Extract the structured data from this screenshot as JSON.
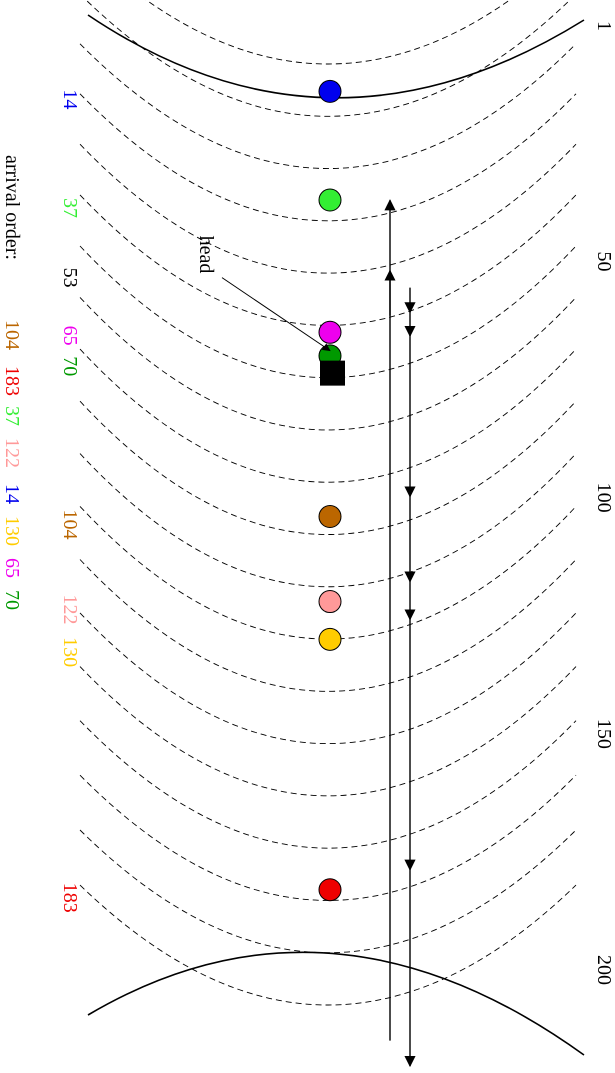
{
  "scale_labels": [
    {
      "text": "1",
      "cyl": 1
    },
    {
      "text": "50",
      "cyl": 50
    },
    {
      "text": "100",
      "cyl": 100
    },
    {
      "text": "150",
      "cyl": 150
    },
    {
      "text": "200",
      "cyl": 200
    }
  ],
  "requests": [
    {
      "cyl": 14,
      "label": "14",
      "color": "#0000ee",
      "label_cyl": 14
    },
    {
      "cyl": 37,
      "label": "37",
      "color": "#33ee33",
      "label_cyl": 37
    },
    {
      "cyl": 65,
      "label": "65",
      "color": "#ee00ee",
      "label_cyl": 64
    },
    {
      "cyl": 70,
      "label": "70",
      "color": "#009900",
      "label_cyl": 70.5
    },
    {
      "cyl": 104,
      "label": "104",
      "color": "#bb6600",
      "label_cyl": 104
    },
    {
      "cyl": 122,
      "label": "122",
      "color": "#ff9999",
      "label_cyl": 122
    },
    {
      "cyl": 130,
      "label": "130",
      "color": "#ffcc00",
      "label_cyl": 131
    },
    {
      "cyl": 183,
      "label": "183",
      "color": "#ee0000",
      "label_cyl": 183
    }
  ],
  "head": {
    "cyl": 53,
    "label": "53",
    "pointer_label": "head"
  },
  "arrival_order": {
    "label": "arrival order:",
    "items": [
      {
        "text": "104",
        "color": "#bb6600"
      },
      {
        "text": "183",
        "color": "#ee0000"
      },
      {
        "text": "37",
        "color": "#33ee33"
      },
      {
        "text": "122",
        "color": "#ff9999"
      },
      {
        "text": "14",
        "color": "#0000ee"
      },
      {
        "text": "130",
        "color": "#ffcc00"
      },
      {
        "text": "65",
        "color": "#ee00ee"
      },
      {
        "text": "70",
        "color": "#009900"
      }
    ]
  },
  "sweep": {
    "upward_from_cyl": 53,
    "upward_to_cyl": 0,
    "downward_from_cyl": 1,
    "downward_to_cyl": 199
  },
  "track_count": 19
}
